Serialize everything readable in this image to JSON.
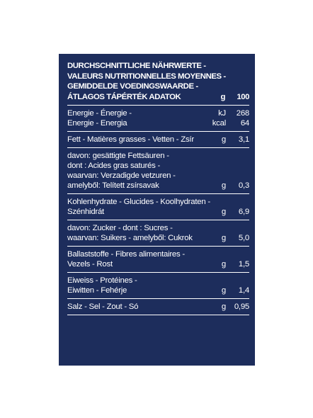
{
  "heading": {
    "lines": [
      "DURCHSCHNITTLICHE NÄHRWERTE -",
      "VALEURS NUTRITIONNELLES MOYENNES -",
      "GEMIDDELDE VOEDINGSWAARDE -",
      "ÁTLAGOS TÁPÉRTÉK ADATOK"
    ],
    "unit": "g",
    "value": "100"
  },
  "energy": {
    "kj_label": "Energie - Énergie -",
    "kj_unit": "kJ",
    "kj_value": "268",
    "kcal_label": "Energie - Energia",
    "kcal_unit": "kcal",
    "kcal_value": "64"
  },
  "fat": {
    "label": "Fett - Matières grasses - Vetten - Zsír",
    "unit": "g",
    "value": "3,1"
  },
  "saturated": {
    "lines": [
      "davon: gesättigte Fettsäuren -",
      "dont : Acides gras saturés -",
      "waarvan: Verzadigde vetzuren -"
    ],
    "last": "amelyből: Telített zsírsavak",
    "unit": "g",
    "value": "0,3"
  },
  "carbs": {
    "line1": "Kohlenhydrate - Glucides - Koolhydraten -",
    "last": "Szénhidrát",
    "unit": "g",
    "value": "6,9"
  },
  "sugars": {
    "line1": "davon: Zucker - dont : Sucres -",
    "last": "waarvan: Suikers - amelyből: Cukrok",
    "unit": "g",
    "value": "5,0"
  },
  "fibre": {
    "line1": "Ballaststoffe - Fibres alimentaires -",
    "last": "Vezels - Rost",
    "unit": "g",
    "value": "1,5"
  },
  "protein": {
    "line1": "Eiweiss - Protéines -",
    "last": "Eiwitten - Fehérje",
    "unit": "g",
    "value": "1,4"
  },
  "salt": {
    "label": "Salz - Sel - Zout - Só",
    "unit": "g",
    "value": "0,95"
  }
}
